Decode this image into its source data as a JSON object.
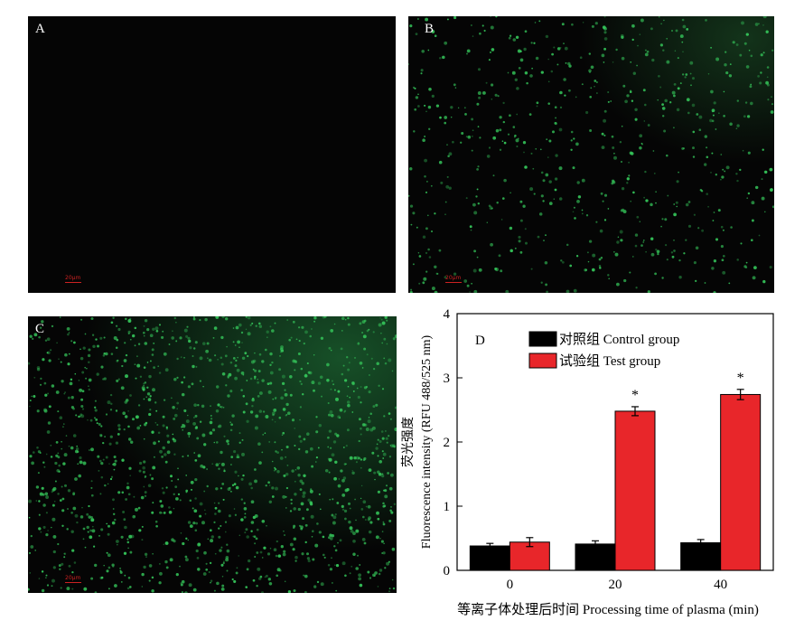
{
  "panels": [
    {
      "letter": "A",
      "scale_label": "20μm",
      "fluorescence": "none"
    },
    {
      "letter": "B",
      "scale_label": "20μm",
      "fluorescence": "moderate"
    },
    {
      "letter": "C",
      "scale_label": "20μm",
      "fluorescence": "dense"
    }
  ],
  "colors": {
    "image_bg": "#050505",
    "cell_green": "#35c65a",
    "scale_bar": "#cc2222"
  },
  "chart_data": {
    "type": "bar",
    "panel_letter": "D",
    "categories": [
      "0",
      "20",
      "40"
    ],
    "series": [
      {
        "name": "对照组 Control group",
        "color": "#000000",
        "values": [
          0.38,
          0.41,
          0.43
        ],
        "errors": [
          0.04,
          0.05,
          0.05
        ]
      },
      {
        "name": "试验组 Test group",
        "color": "#e8262a",
        "values": [
          0.44,
          2.48,
          2.74
        ],
        "errors": [
          0.07,
          0.07,
          0.08
        ]
      }
    ],
    "significance": [
      "",
      "*",
      "*"
    ],
    "xlabel": "等离子体处理后时间 Processing time of plasma (min)",
    "ylabel_cn": "荧光强度",
    "ylabel_en": "Fluorescence intensity (RFU 488/525 nm)",
    "ylim": [
      0,
      4
    ],
    "yticks": [
      "0",
      "1",
      "2",
      "3",
      "4"
    ],
    "legend_position": "top-left",
    "grid": false
  }
}
